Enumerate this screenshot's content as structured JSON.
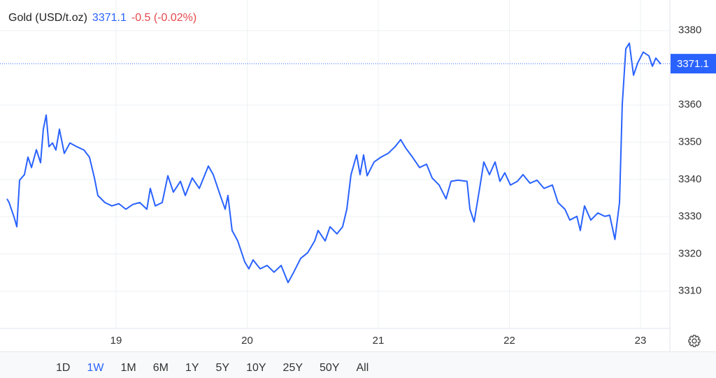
{
  "chart_data": {
    "type": "line",
    "title": "Gold (USD/t.oz)",
    "price": 3371.1,
    "change": "-0.5 (-0.02%)",
    "color": "#2962ff",
    "x": [
      18.168,
      18.184,
      18.221,
      18.243,
      18.264,
      18.301,
      18.328,
      18.355,
      18.392,
      18.424,
      18.445,
      18.467,
      18.488,
      18.515,
      18.541,
      18.568,
      18.605,
      18.648,
      18.701,
      18.755,
      18.797,
      18.835,
      18.861,
      18.915,
      18.968,
      19.021,
      19.075,
      19.128,
      19.181,
      19.235,
      19.261,
      19.299,
      19.352,
      19.395,
      19.437,
      19.491,
      19.528,
      19.581,
      19.635,
      19.704,
      19.741,
      19.795,
      19.832,
      19.853,
      19.885,
      19.928,
      19.981,
      20.013,
      20.045,
      20.099,
      20.152,
      20.205,
      20.259,
      20.312,
      20.355,
      20.408,
      20.461,
      20.515,
      20.541,
      20.595,
      20.632,
      20.685,
      20.728,
      20.76,
      20.792,
      20.835,
      20.861,
      20.888,
      20.915,
      20.968,
      21.021,
      21.075,
      21.128,
      21.171,
      21.208,
      21.261,
      21.315,
      21.368,
      21.411,
      21.464,
      21.517,
      21.555,
      21.608,
      21.677,
      21.699,
      21.731,
      21.773,
      21.805,
      21.848,
      21.891,
      21.928,
      21.965,
      22.008,
      22.061,
      22.104,
      22.157,
      22.211,
      22.264,
      22.328,
      22.371,
      22.424,
      22.461,
      22.515,
      22.541,
      22.573,
      22.621,
      22.675,
      22.728,
      22.765,
      22.805,
      22.84,
      22.861,
      22.888,
      22.915,
      22.947,
      22.979,
      23.021,
      23.064,
      23.091,
      23.117,
      23.155
    ],
    "values": [
      3334.8,
      3333.8,
      3330,
      3327.3,
      3339.8,
      3341.3,
      3346,
      3343.2,
      3348,
      3344.5,
      3353.5,
      3357.3,
      3348.8,
      3349.8,
      3347.9,
      3353.5,
      3347,
      3349.8,
      3348.8,
      3347.9,
      3346,
      3340.4,
      3335.7,
      3333.8,
      3332.9,
      3333.5,
      3332,
      3333.3,
      3333.8,
      3332,
      3337.6,
      3332.9,
      3333.8,
      3341,
      3336.6,
      3339.5,
      3335.7,
      3340.4,
      3337.6,
      3343.6,
      3341.3,
      3335.7,
      3332,
      3335.7,
      3326.3,
      3323.5,
      3317.9,
      3316,
      3318.4,
      3316,
      3316.9,
      3315.1,
      3316.9,
      3312.3,
      3315.1,
      3318.8,
      3320.3,
      3323.5,
      3326.3,
      3323.5,
      3327.3,
      3325.4,
      3327.3,
      3332,
      3341.3,
      3346.6,
      3341.3,
      3346.6,
      3341,
      3344.7,
      3346,
      3347,
      3348.8,
      3350.7,
      3348.5,
      3346,
      3343.2,
      3344.1,
      3340.4,
      3338.5,
      3334.8,
      3339.5,
      3339.8,
      3339.5,
      3332,
      3328.6,
      3337.6,
      3344.7,
      3341.3,
      3344.7,
      3339.5,
      3341.8,
      3338.5,
      3339.5,
      3341.3,
      3339,
      3339.8,
      3337.6,
      3338.5,
      3333.8,
      3332,
      3329.1,
      3330.1,
      3326.3,
      3332.9,
      3329.1,
      3331,
      3330.1,
      3330.4,
      3323.9,
      3333.8,
      3360.1,
      3375.1,
      3376.6,
      3368,
      3371.3,
      3374.2,
      3373.2,
      3370.4,
      3372.6,
      3371
    ],
    "xlim": [
      18.168,
      23.224
    ],
    "xticks": [
      19,
      20,
      21,
      22,
      23
    ],
    "ylim": [
      3300,
      3388.2
    ],
    "yticks": [
      3310,
      3320,
      3330,
      3340,
      3350,
      3360,
      3380
    ],
    "grid": true
  },
  "range_selector": {
    "options": [
      "1D",
      "1W",
      "1M",
      "6M",
      "1Y",
      "5Y",
      "10Y",
      "25Y",
      "50Y",
      "All"
    ],
    "active": "1W"
  }
}
